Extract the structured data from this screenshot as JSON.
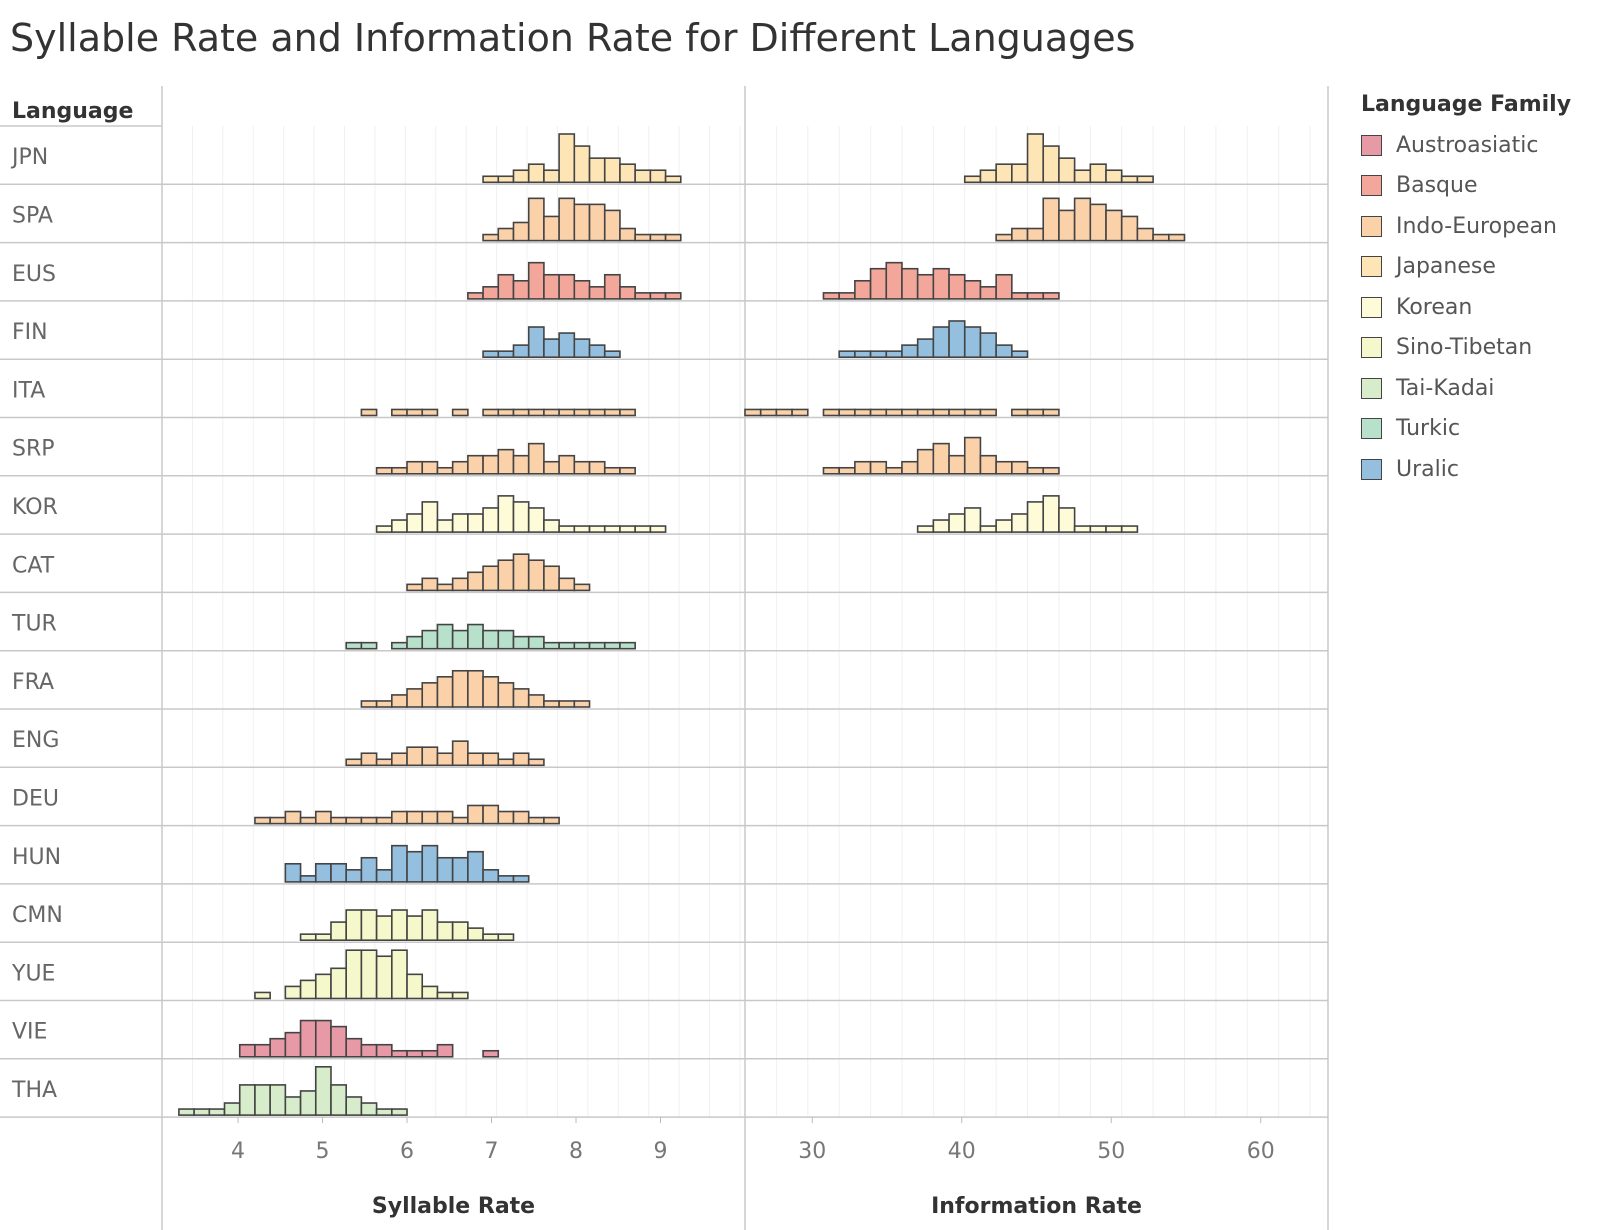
{
  "title": "Syllable Rate and Information Rate for Different Languages",
  "legend": {
    "title": "Language Family",
    "items": [
      {
        "label": "Austroasiatic",
        "color": "#e79aa6"
      },
      {
        "label": "Basque",
        "color": "#f2a79a"
      },
      {
        "label": "Indo-European",
        "color": "#fbd1aa"
      },
      {
        "label": "Japanese",
        "color": "#fde5b5"
      },
      {
        "label": "Korean",
        "color": "#fdfbd8"
      },
      {
        "label": "Sino-Tibetan",
        "color": "#f4f8ca"
      },
      {
        "label": "Tai-Kadai",
        "color": "#d6ecca"
      },
      {
        "label": "Turkic",
        "color": "#b8e1cc"
      },
      {
        "label": "Uralic",
        "color": "#94bfde"
      }
    ]
  },
  "chart_data": {
    "type": "histogram",
    "row_header": "Language",
    "panels": [
      {
        "xlabel": "Syllable Rate",
        "xlim": [
          3.1,
          10.0
        ],
        "bin_start": 3.3,
        "bin_width": 0.18,
        "ticks": [
          4,
          5,
          6,
          7,
          8,
          9
        ],
        "ymax": 8
      },
      {
        "xlabel": "Information Rate",
        "xlim": [
          25.5,
          64.5
        ],
        "bin_start": 25.5,
        "bin_width": 1.05,
        "ticks": [
          30,
          40,
          50,
          60
        ],
        "ymax": 8
      }
    ],
    "rows": [
      {
        "language": "JPN",
        "family": "Japanese",
        "syllable_counts": [
          0,
          0,
          0,
          0,
          0,
          0,
          0,
          0,
          0,
          0,
          0,
          0,
          0,
          0,
          0,
          0,
          0,
          0,
          0,
          0,
          1,
          1,
          2,
          3,
          2,
          8,
          6,
          4,
          4,
          3,
          2,
          2,
          1,
          0,
          0,
          0,
          0,
          0
        ],
        "information_counts": [
          0,
          0,
          0,
          0,
          0,
          0,
          0,
          0,
          0,
          0,
          0,
          0,
          0,
          0,
          1,
          2,
          3,
          3,
          8,
          6,
          4,
          2,
          3,
          2,
          1,
          1,
          0,
          0,
          0,
          0,
          0,
          0,
          0,
          0,
          0,
          0,
          0,
          0
        ]
      },
      {
        "language": "SPA",
        "family": "Indo-European",
        "syllable_counts": [
          0,
          0,
          0,
          0,
          0,
          0,
          0,
          0,
          0,
          0,
          0,
          0,
          0,
          0,
          0,
          0,
          0,
          0,
          0,
          0,
          1,
          2,
          3,
          7,
          4,
          7,
          6,
          6,
          5,
          2,
          1,
          1,
          1,
          0,
          0,
          0,
          0,
          0
        ],
        "information_counts": [
          0,
          0,
          0,
          0,
          0,
          0,
          0,
          0,
          0,
          0,
          0,
          0,
          0,
          0,
          0,
          0,
          1,
          2,
          2,
          7,
          5,
          7,
          6,
          5,
          4,
          2,
          1,
          1,
          0,
          0,
          0,
          0,
          0,
          0,
          0,
          0,
          0,
          0
        ]
      },
      {
        "language": "EUS",
        "family": "Basque",
        "syllable_counts": [
          0,
          0,
          0,
          0,
          0,
          0,
          0,
          0,
          0,
          0,
          0,
          0,
          0,
          0,
          0,
          0,
          0,
          0,
          0,
          1,
          2,
          4,
          3,
          6,
          4,
          4,
          3,
          2,
          4,
          2,
          1,
          1,
          1,
          0,
          0,
          0,
          0,
          0
        ],
        "information_counts": [
          0,
          0,
          0,
          0,
          0,
          1,
          1,
          3,
          5,
          6,
          5,
          4,
          5,
          4,
          3,
          2,
          4,
          1,
          1,
          1,
          0,
          0,
          0,
          0,
          0,
          0,
          0,
          0,
          0,
          0,
          0,
          0,
          0,
          0,
          0,
          0,
          0,
          0
        ]
      },
      {
        "language": "FIN",
        "family": "Uralic",
        "syllable_counts": [
          0,
          0,
          0,
          0,
          0,
          0,
          0,
          0,
          0,
          0,
          0,
          0,
          0,
          0,
          0,
          0,
          0,
          0,
          0,
          0,
          1,
          1,
          2,
          5,
          3,
          4,
          3,
          2,
          1,
          0,
          0,
          0,
          0,
          0,
          0,
          0,
          0,
          0
        ],
        "information_counts": [
          0,
          0,
          0,
          0,
          0,
          0,
          1,
          1,
          1,
          1,
          2,
          3,
          5,
          6,
          5,
          4,
          2,
          1,
          0,
          0,
          0,
          0,
          0,
          0,
          0,
          0,
          0,
          0,
          0,
          0,
          0,
          0,
          0,
          0,
          0,
          0,
          0,
          0
        ]
      },
      {
        "language": "ITA",
        "family": "Indo-European",
        "syllable_counts": [
          0,
          0,
          0,
          0,
          0,
          0,
          0,
          0,
          0,
          0,
          0,
          0,
          1,
          0,
          1,
          1,
          1,
          0,
          1,
          0,
          1,
          1,
          1,
          1,
          1,
          1,
          1,
          1,
          1,
          1,
          0,
          0,
          0,
          0,
          0,
          0,
          0,
          0
        ],
        "information_counts": [
          1,
          1,
          1,
          1,
          0,
          1,
          1,
          1,
          1,
          1,
          1,
          1,
          1,
          1,
          1,
          1,
          0,
          1,
          1,
          1,
          0,
          0,
          0,
          0,
          0,
          0,
          0,
          0,
          0,
          0,
          0,
          0,
          0,
          0,
          0,
          0,
          0,
          0
        ]
      },
      {
        "language": "SRP",
        "family": "Indo-European",
        "syllable_counts": [
          0,
          0,
          0,
          0,
          0,
          0,
          0,
          0,
          0,
          0,
          0,
          0,
          0,
          1,
          1,
          2,
          2,
          1,
          2,
          3,
          3,
          4,
          3,
          5,
          2,
          3,
          2,
          2,
          1,
          1,
          0,
          0,
          0,
          0,
          0,
          0,
          0,
          0
        ],
        "information_counts": [
          0,
          0,
          0,
          0,
          0,
          1,
          1,
          2,
          2,
          1,
          2,
          4,
          5,
          3,
          6,
          3,
          2,
          2,
          1,
          1,
          0,
          0,
          0,
          0,
          0,
          0,
          0,
          0,
          0,
          0,
          0,
          0,
          0,
          0,
          0,
          0,
          0,
          0
        ]
      },
      {
        "language": "KOR",
        "family": "Korean",
        "syllable_counts": [
          0,
          0,
          0,
          0,
          0,
          0,
          0,
          0,
          0,
          0,
          0,
          0,
          0,
          1,
          2,
          3,
          5,
          2,
          3,
          3,
          4,
          6,
          5,
          4,
          2,
          1,
          1,
          1,
          1,
          1,
          1,
          1,
          0,
          0,
          0,
          0,
          0,
          0
        ],
        "information_counts": [
          0,
          0,
          0,
          0,
          0,
          0,
          0,
          0,
          0,
          0,
          0,
          1,
          2,
          3,
          4,
          1,
          2,
          3,
          5,
          6,
          4,
          1,
          1,
          1,
          1,
          0,
          0,
          0,
          0,
          0,
          0,
          0,
          0,
          0,
          0,
          0,
          0,
          0
        ]
      },
      {
        "language": "CAT",
        "family": "Indo-European",
        "syllable_counts": [
          0,
          0,
          0,
          0,
          0,
          0,
          0,
          0,
          0,
          0,
          0,
          0,
          0,
          0,
          0,
          1,
          2,
          1,
          2,
          3,
          4,
          5,
          6,
          5,
          4,
          2,
          1,
          0,
          0,
          0,
          0,
          0,
          0,
          0,
          0,
          0,
          0,
          0
        ]
      },
      {
        "language": "TUR",
        "family": "Turkic",
        "syllable_counts": [
          0,
          0,
          0,
          0,
          0,
          0,
          0,
          0,
          0,
          0,
          0,
          1,
          1,
          0,
          1,
          2,
          3,
          4,
          3,
          4,
          3,
          3,
          2,
          2,
          1,
          1,
          1,
          1,
          1,
          1,
          0,
          0,
          0,
          0,
          0,
          0,
          0,
          0
        ]
      },
      {
        "language": "FRA",
        "family": "Indo-European",
        "syllable_counts": [
          0,
          0,
          0,
          0,
          0,
          0,
          0,
          0,
          0,
          0,
          0,
          0,
          1,
          1,
          2,
          3,
          4,
          5,
          6,
          6,
          5,
          4,
          3,
          2,
          1,
          1,
          1,
          0,
          0,
          0,
          0,
          0,
          0,
          0,
          0,
          0,
          0,
          0
        ]
      },
      {
        "language": "ENG",
        "family": "Indo-European",
        "syllable_counts": [
          0,
          0,
          0,
          0,
          0,
          0,
          0,
          0,
          0,
          0,
          0,
          1,
          2,
          1,
          2,
          3,
          3,
          2,
          4,
          2,
          2,
          1,
          2,
          1,
          0,
          0,
          0,
          0,
          0,
          0,
          0,
          0,
          0,
          0,
          0,
          0,
          0,
          0
        ]
      },
      {
        "language": "DEU",
        "family": "Indo-European",
        "syllable_counts": [
          0,
          0,
          0,
          0,
          0,
          1,
          1,
          2,
          1,
          2,
          1,
          1,
          1,
          1,
          2,
          2,
          2,
          2,
          1,
          3,
          3,
          2,
          2,
          1,
          1,
          0,
          0,
          0,
          0,
          0,
          0,
          0,
          0,
          0,
          0,
          0,
          0,
          0
        ]
      },
      {
        "language": "HUN",
        "family": "Uralic",
        "syllable_counts": [
          0,
          0,
          0,
          0,
          0,
          0,
          0,
          3,
          1,
          3,
          3,
          2,
          4,
          2,
          6,
          5,
          6,
          4,
          4,
          5,
          2,
          1,
          1,
          0,
          0,
          0,
          0,
          0,
          0,
          0,
          0,
          0,
          0,
          0,
          0,
          0,
          0,
          0
        ]
      },
      {
        "language": "CMN",
        "family": "Sino-Tibetan",
        "syllable_counts": [
          0,
          0,
          0,
          0,
          0,
          0,
          0,
          0,
          1,
          1,
          3,
          5,
          5,
          4,
          5,
          4,
          5,
          3,
          3,
          2,
          1,
          1,
          0,
          0,
          0,
          0,
          0,
          0,
          0,
          0,
          0,
          0,
          0,
          0,
          0,
          0,
          0,
          0
        ]
      },
      {
        "language": "YUE",
        "family": "Sino-Tibetan",
        "syllable_counts": [
          0,
          0,
          0,
          0,
          0,
          1,
          0,
          2,
          3,
          4,
          5,
          8,
          8,
          7,
          8,
          4,
          2,
          1,
          1,
          0,
          0,
          0,
          0,
          0,
          0,
          0,
          0,
          0,
          0,
          0,
          0,
          0,
          0,
          0,
          0,
          0,
          0,
          0
        ]
      },
      {
        "language": "VIE",
        "family": "Austroasiatic",
        "syllable_counts": [
          0,
          0,
          0,
          0,
          2,
          2,
          3,
          4,
          6,
          6,
          5,
          3,
          2,
          2,
          1,
          1,
          1,
          2,
          0,
          0,
          1,
          0,
          0,
          0,
          0,
          0,
          0,
          0,
          0,
          0,
          0,
          0,
          0,
          0,
          0,
          0,
          0,
          0
        ]
      },
      {
        "language": "THA",
        "family": "Tai-Kadai",
        "syllable_counts": [
          1,
          1,
          1,
          2,
          5,
          5,
          5,
          3,
          4,
          8,
          5,
          3,
          2,
          1,
          1,
          0,
          0,
          0,
          0,
          0,
          0,
          0,
          0,
          0,
          0,
          0,
          0,
          0,
          0,
          0,
          0,
          0,
          0,
          0,
          0,
          0,
          0,
          0
        ]
      }
    ]
  }
}
